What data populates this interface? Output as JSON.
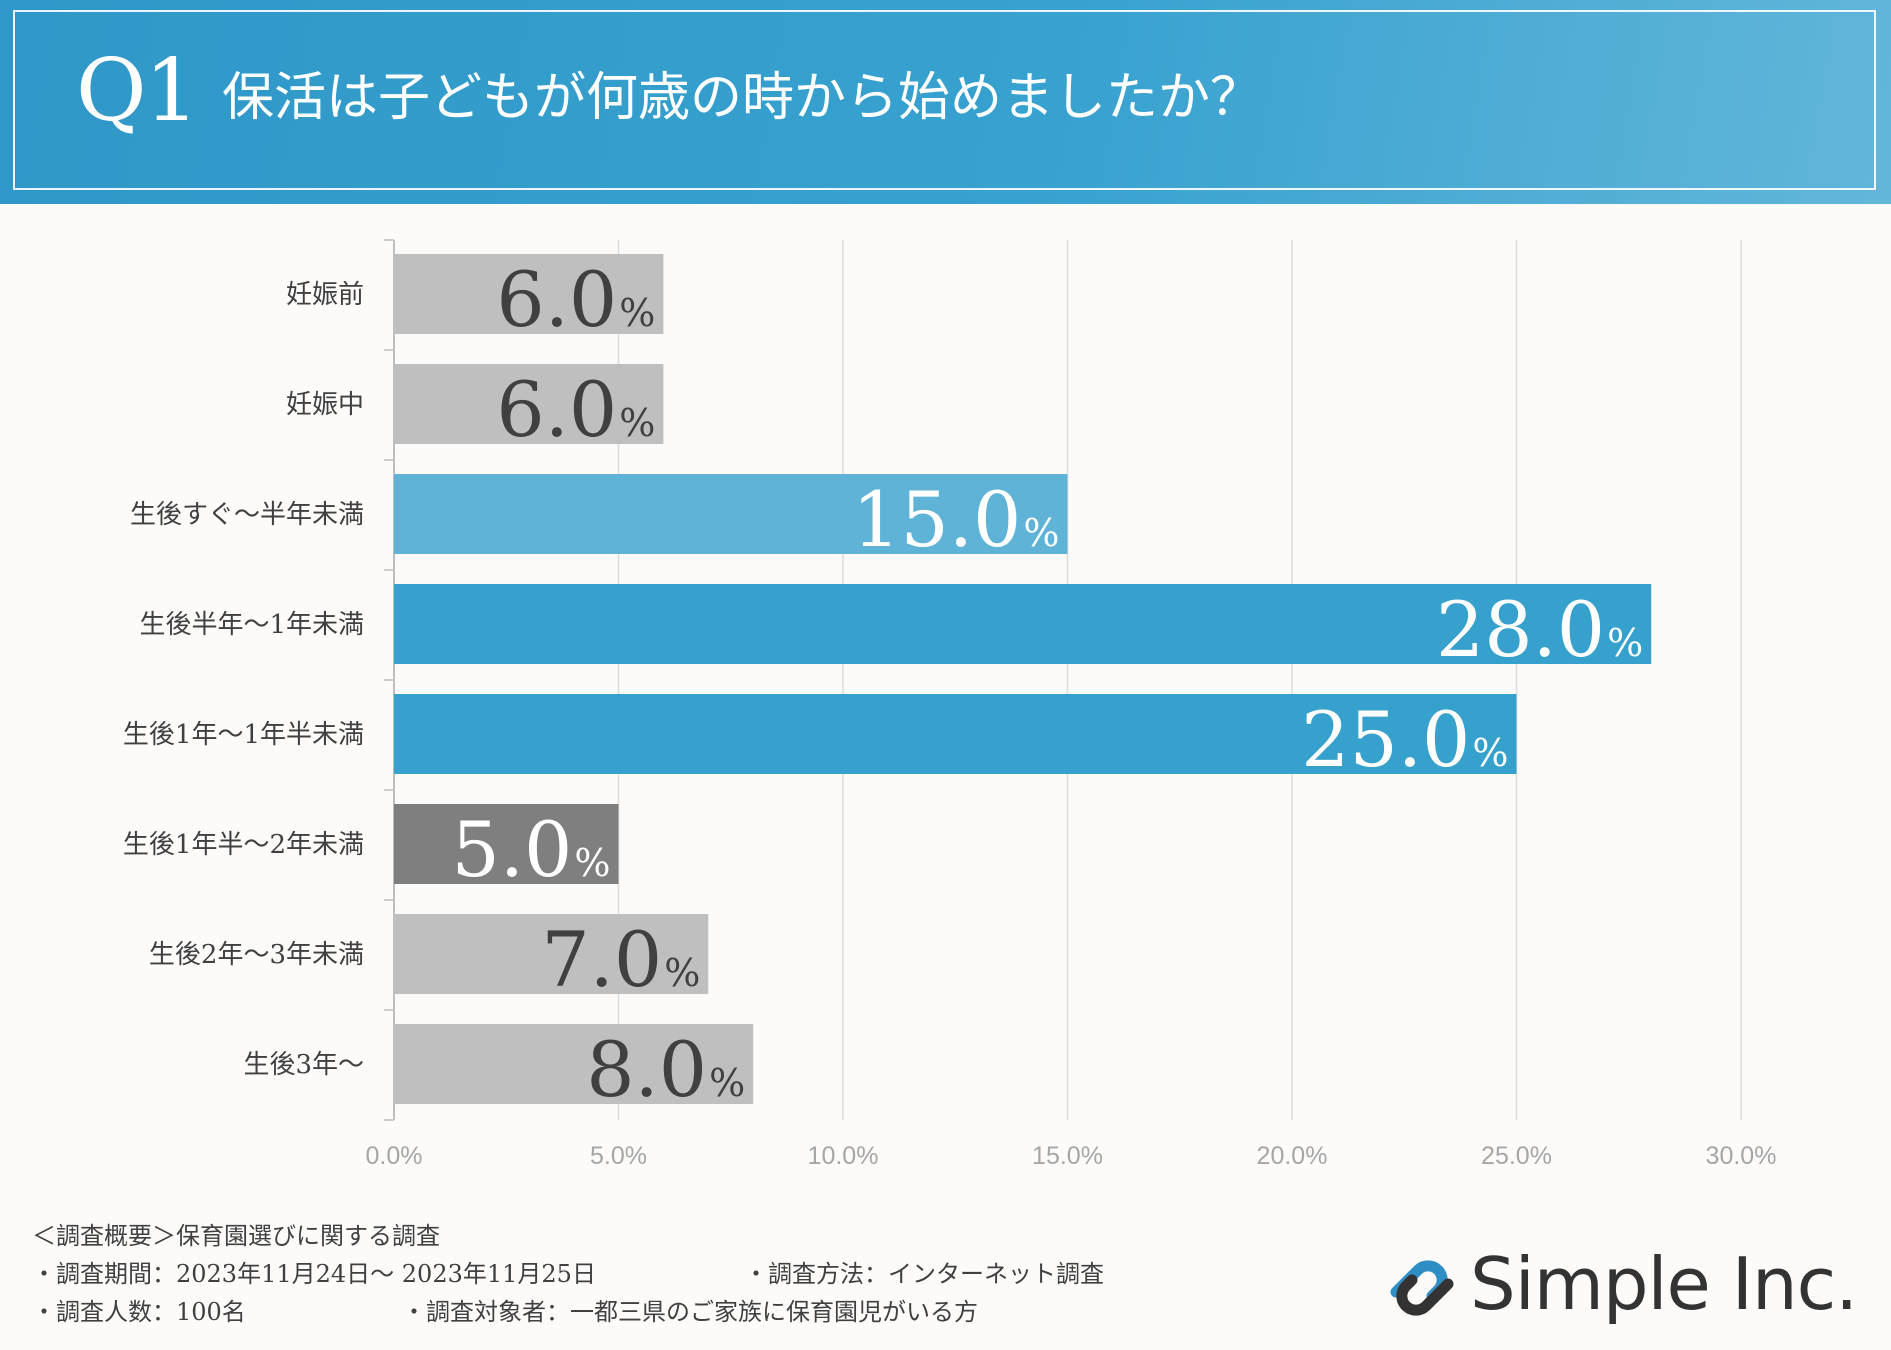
{
  "header": {
    "q_label": "Q1",
    "title": "保活は子どもが何歳の時から始めましたか？"
  },
  "colors": {
    "header": "#3aa0cd",
    "bar_light_gray": "#bfbfbf",
    "bar_dark_gray": "#7f7f7f",
    "bar_light_blue": "#5fb3d6",
    "bar_blue": "#36a1cc",
    "value_dark": "#404040",
    "value_white": "#ffffff"
  },
  "chart_data": {
    "type": "bar",
    "orientation": "horizontal",
    "title": "保活は子どもが何歳の時から始めましたか？",
    "xlabel": "",
    "ylabel": "",
    "categories": [
      "妊娠前",
      "妊娠中",
      "生後すぐ～半年未満",
      "生後半年～1年未満",
      "生後1年～1年半未満",
      "生後1年半～2年未満",
      "生後2年～3年未満",
      "生後3年～"
    ],
    "values": [
      6.0,
      6.0,
      15.0,
      28.0,
      25.0,
      5.0,
      7.0,
      8.0
    ],
    "bar_colors": [
      "#bfbfbf",
      "#bfbfbf",
      "#5fb3d6",
      "#36a1cc",
      "#36a1cc",
      "#7f7f7f",
      "#bfbfbf",
      "#bfbfbf"
    ],
    "label_colors": [
      "#404040",
      "#404040",
      "#ffffff",
      "#ffffff",
      "#ffffff",
      "#ffffff",
      "#404040",
      "#404040"
    ],
    "value_labels": [
      "6.0",
      "6.0",
      "15.0",
      "28.0",
      "25.0",
      "5.0",
      "7.0",
      "8.0"
    ],
    "value_suffix": "%",
    "xlim": [
      0,
      30
    ],
    "xticks": [
      0,
      5,
      10,
      15,
      20,
      25,
      30
    ],
    "xtick_labels": [
      "0.0%",
      "5.0%",
      "10.0%",
      "15.0%",
      "20.0%",
      "25.0%",
      "30.0%"
    ],
    "grid": true,
    "legend": "none"
  },
  "footer": {
    "overview": "＜調査概要＞保育園選びに関する調査",
    "period": "・調査期間：2023年11月24日～ 2023年11月25日",
    "method": "・調査方法：インターネット調査",
    "respondents": "・調査人数：100名",
    "target": "・調査対象者：一都三県のご家族に保育園児がいる方"
  },
  "logo": {
    "text": "Simple Inc.",
    "icon": "chain-link-logo-icon"
  }
}
